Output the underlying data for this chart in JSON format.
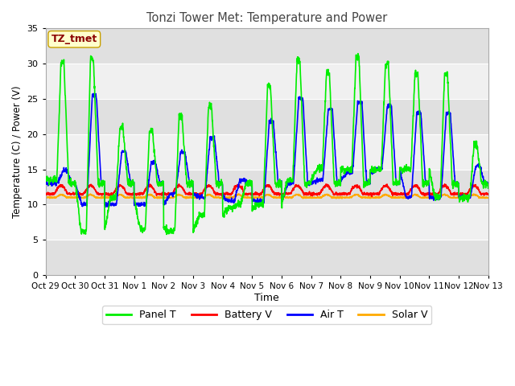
{
  "title": "Tonzi Tower Met: Temperature and Power",
  "xlabel": "Time",
  "ylabel": "Temperature (C) / Power (V)",
  "ylim": [
    0,
    35
  ],
  "yticks": [
    0,
    5,
    10,
    15,
    20,
    25,
    30,
    35
  ],
  "fig_bg": "#ffffff",
  "plot_bg_light": "#f0f0f0",
  "plot_bg_dark": "#e0e0e0",
  "series": {
    "Panel T": {
      "color": "#00ee00",
      "lw": 1.2
    },
    "Battery V": {
      "color": "#ff0000",
      "lw": 1.2
    },
    "Air T": {
      "color": "#0000ff",
      "lw": 1.2
    },
    "Solar V": {
      "color": "#ffaa00",
      "lw": 1.2
    }
  },
  "x_tick_labels": [
    "Oct 29",
    "Oct 30",
    "Oct 31",
    "Nov 1",
    "Nov 2",
    "Nov 3",
    "Nov 4",
    "Nov 5",
    "Nov 6",
    "Nov 7",
    "Nov 8",
    "Nov 9",
    "Nov 10",
    "Nov 11",
    "Nov 12",
    "Nov 13"
  ],
  "num_days": 15,
  "ppd": 144,
  "panel_peaks": [
    30.2,
    30.6,
    21.0,
    20.5,
    22.5,
    24.0,
    10.0,
    26.8,
    30.5,
    28.7,
    31.0,
    30.0,
    28.5,
    28.5,
    18.5
  ],
  "panel_troughs": [
    13.5,
    6.2,
    11.0,
    6.5,
    6.2,
    8.5,
    9.5,
    10.0,
    13.5,
    15.0,
    15.0,
    15.0,
    15.0,
    11.0,
    11.0
  ],
  "air_peaks": [
    14.8,
    25.5,
    17.5,
    16.0,
    17.5,
    19.5,
    13.5,
    21.8,
    25.0,
    23.5,
    24.5,
    24.0,
    23.0,
    23.0,
    15.5
  ],
  "air_troughs": [
    13.0,
    10.0,
    10.0,
    10.0,
    11.5,
    11.0,
    10.5,
    10.5,
    13.0,
    13.5,
    14.5,
    15.0,
    11.0,
    11.0,
    11.0
  ]
}
